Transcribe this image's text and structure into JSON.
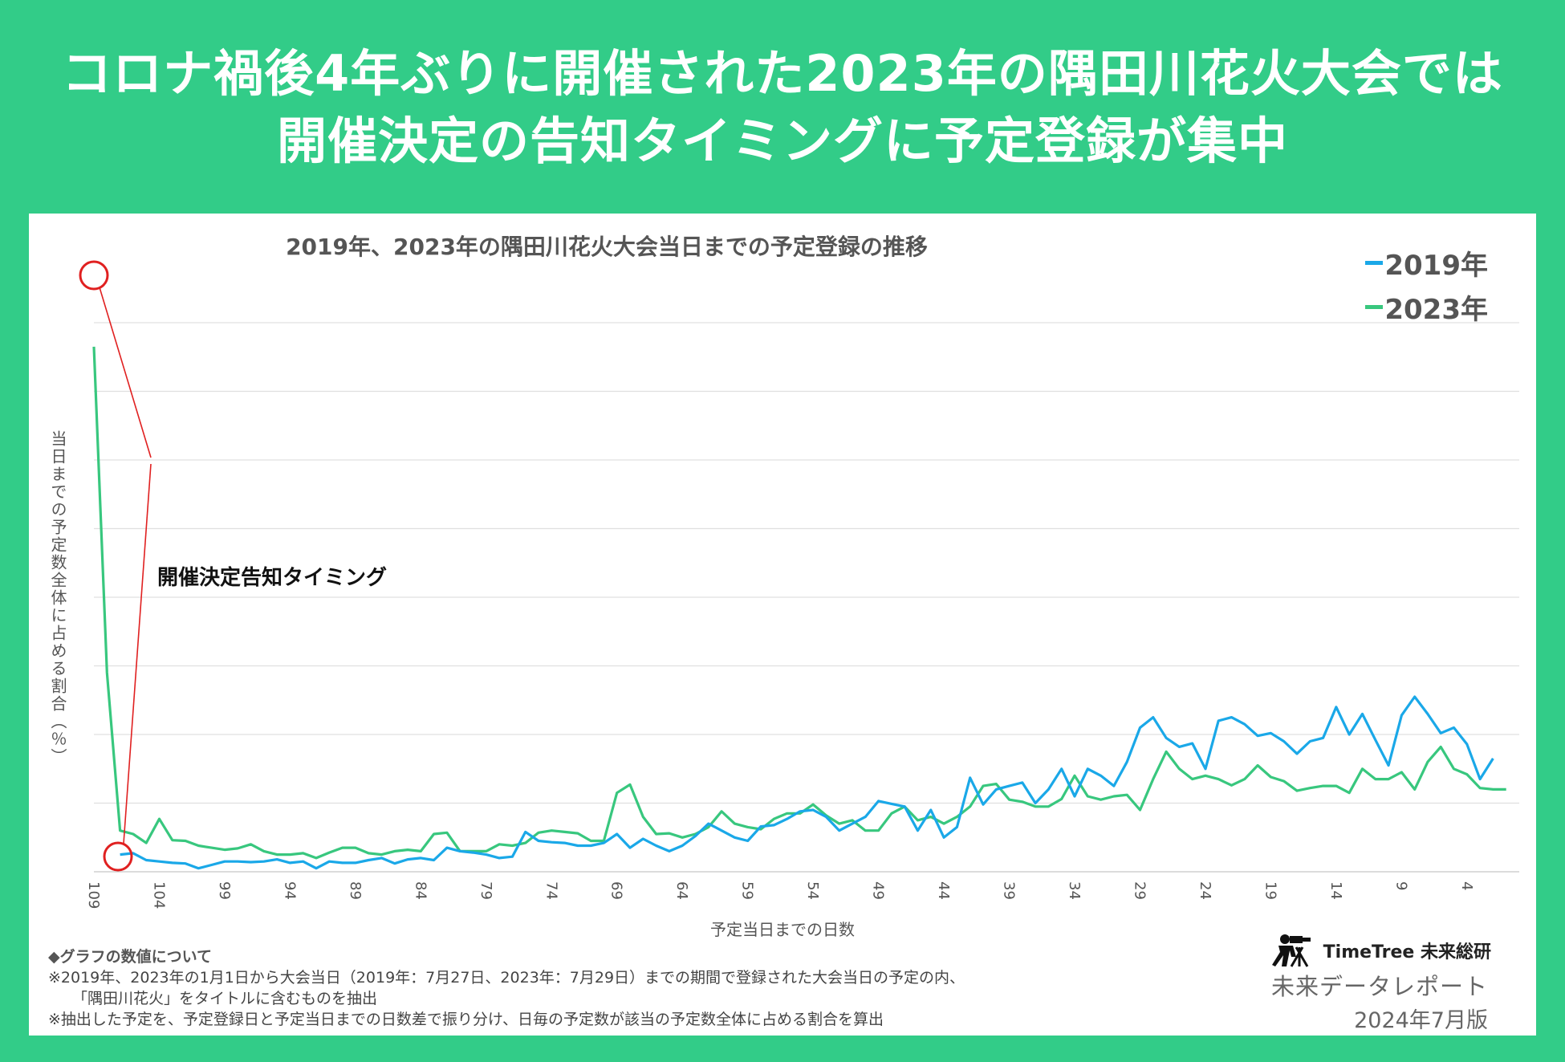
{
  "headline": {
    "line1": "コロナ禍後4年ぶりに開催された2023年の隅田川花火大会では",
    "line2": "開催決定の告知タイミングに予定登録が集中"
  },
  "colors": {
    "background": "#32cc88",
    "series_2019": "#1aa8e8",
    "series_2023": "#38c77e",
    "annotation": "#e02020"
  },
  "annotation": {
    "label": "開催決定告知タイミング"
  },
  "chart_data": {
    "type": "line",
    "title": "2019年、2023年の隅田川花火大会当日までの予定登録の推移",
    "xlabel": "予定当日までの日数",
    "ylabel": "当日までの予定数全体に占める割合（％）",
    "x_ticks": [
      "109",
      "104",
      "99",
      "94",
      "89",
      "84",
      "79",
      "74",
      "69",
      "64",
      "59",
      "54",
      "49",
      "44",
      "39",
      "34",
      "29",
      "24",
      "19",
      "14",
      "9",
      "4"
    ],
    "x_range": [
      109,
      0
    ],
    "ylim": [
      0,
      8
    ],
    "y_gridlines": 8,
    "legend": "top-right",
    "series": [
      {
        "name": "2019年",
        "color": "#1aa8e8",
        "start_day": 107,
        "values": [
          0.25,
          0.27,
          0.17,
          0.15,
          0.13,
          0.12,
          0.05,
          0.1,
          0.15,
          0.15,
          0.14,
          0.15,
          0.18,
          0.13,
          0.15,
          0.05,
          0.15,
          0.13,
          0.13,
          0.17,
          0.2,
          0.12,
          0.18,
          0.2,
          0.17,
          0.35,
          0.3,
          0.28,
          0.25,
          0.2,
          0.22,
          0.58,
          0.45,
          0.43,
          0.42,
          0.38,
          0.38,
          0.42,
          0.55,
          0.35,
          0.48,
          0.38,
          0.3,
          0.38,
          0.52,
          0.7,
          0.6,
          0.5,
          0.45,
          0.66,
          0.68,
          0.77,
          0.88,
          0.9,
          0.8,
          0.6,
          0.7,
          0.8,
          1.03,
          0.99,
          0.95,
          0.6,
          0.9,
          0.5,
          0.65,
          1.37,
          0.98,
          1.2,
          1.25,
          1.3,
          1.0,
          1.2,
          1.5,
          1.1,
          1.5,
          1.4,
          1.25,
          1.6,
          2.1,
          2.25,
          1.95,
          1.82,
          1.87,
          1.5,
          2.2,
          2.25,
          2.15,
          1.98,
          2.02,
          1.9,
          1.72,
          1.9,
          1.95,
          2.4,
          2.0,
          2.3,
          1.92,
          1.55,
          2.28,
          2.55,
          2.3,
          2.02,
          2.1,
          1.86,
          1.35,
          1.65
        ]
      },
      {
        "name": "2023年",
        "color": "#38c77e",
        "start_day": 109,
        "values": [
          7.65,
          2.9,
          0.6,
          0.55,
          0.42,
          0.77,
          0.46,
          0.45,
          0.38,
          0.35,
          0.32,
          0.34,
          0.4,
          0.3,
          0.25,
          0.25,
          0.27,
          0.2,
          0.28,
          0.35,
          0.35,
          0.27,
          0.25,
          0.3,
          0.32,
          0.3,
          0.55,
          0.57,
          0.3,
          0.3,
          0.3,
          0.4,
          0.38,
          0.42,
          0.57,
          0.6,
          0.58,
          0.56,
          0.45,
          0.45,
          1.15,
          1.27,
          0.8,
          0.55,
          0.56,
          0.5,
          0.55,
          0.65,
          0.88,
          0.7,
          0.65,
          0.62,
          0.77,
          0.85,
          0.85,
          0.98,
          0.82,
          0.7,
          0.75,
          0.6,
          0.6,
          0.85,
          0.95,
          0.75,
          0.8,
          0.7,
          0.8,
          0.95,
          1.25,
          1.28,
          1.05,
          1.02,
          0.95,
          0.95,
          1.06,
          1.4,
          1.1,
          1.05,
          1.1,
          1.12,
          0.9,
          1.35,
          1.75,
          1.5,
          1.35,
          1.4,
          1.35,
          1.26,
          1.35,
          1.55,
          1.38,
          1.32,
          1.18,
          1.22,
          1.25,
          1.25,
          1.15,
          1.5,
          1.35,
          1.35,
          1.45,
          1.2,
          1.6,
          1.82,
          1.5,
          1.42,
          1.22,
          1.2,
          1.2
        ]
      }
    ]
  },
  "notes": {
    "heading": "◆グラフの数値について",
    "line1": "※2019年、2023年の1月1日から大会当日（2019年：7月27日、2023年：7月29日）までの期間で登録された大会当日の予定の内、",
    "line2": "「隅田川花火」をタイトルに含むものを抽出",
    "line3": "※抽出した予定を、予定登録日と予定当日までの日数差で振り分け、日毎の予定数が該当の予定数全体に占める割合を算出"
  },
  "brand": {
    "name": "TimeTree 未来総研",
    "report": "未来データレポート",
    "date": "2024年7月版"
  }
}
